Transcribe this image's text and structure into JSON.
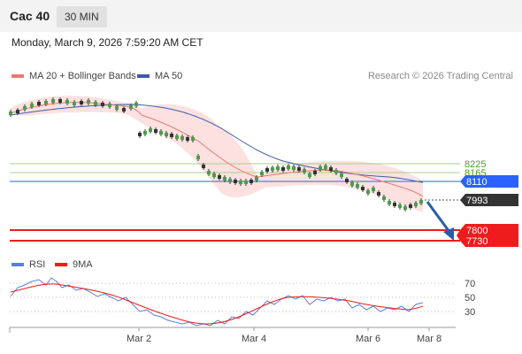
{
  "header": {
    "title": "Cac 40",
    "timeframe": "30 MIN"
  },
  "datetime": "Monday, March 9, 2026 7:59:20 AM CET",
  "legend": {
    "ma20_bb": "MA 20 + Bollinger Bands",
    "ma50": "MA 50",
    "copyright": "Research © 2026 Trading Central"
  },
  "colors": {
    "ma20": "#e87a72",
    "ma50": "#3a5ba8",
    "bands": "#fbdcda",
    "resistance": "#a8d08d",
    "resistance_text": "#4b9a2c",
    "pivot": "#2962ff",
    "support": "#ee1c1c",
    "last": "#333333",
    "arrow": "#2b5ca8",
    "rsi": "#5b80d8",
    "rsi_ma": "#ee1c1c"
  },
  "price_levels": {
    "resistance_1": "8225",
    "resistance_2": "8165",
    "pivot": "8110",
    "last": "7993",
    "support_1": "7800",
    "support_2": "7730"
  },
  "rsi_legend": {
    "rsi": "RSI",
    "ma": "9MA"
  },
  "rsi_levels": [
    "70",
    "50",
    "30"
  ],
  "x_axis": [
    "Mar 2",
    "Mar 4",
    "Mar 6",
    "Mar 8"
  ],
  "chart_data": [
    {
      "type": "line",
      "series": [
        {
          "name": "MA 20 + Bollinger Bands",
          "values": [
            8460,
            8480,
            8470,
            8440,
            8400,
            8330,
            8250,
            8200,
            8170,
            8180,
            8190,
            8150,
            8110,
            8050
          ]
        },
        {
          "name": "MA 50",
          "values": [
            8450,
            8470,
            8470,
            8460,
            8420,
            8360,
            8300,
            8250,
            8205,
            8175,
            8160,
            8140,
            8120,
            8100
          ]
        }
      ],
      "x": [
        "",
        "Mar 2",
        "",
        "",
        "",
        "Mar 4",
        "",
        "",
        "",
        "",
        "Mar 6",
        "",
        "",
        "Mar 8"
      ],
      "horizontal_levels": [
        8225,
        8165,
        8110,
        7993,
        7800,
        7730
      ]
    },
    {
      "type": "line",
      "series": [
        {
          "name": "RSI",
          "values": [
            60,
            75,
            55,
            40,
            22,
            25,
            45,
            52,
            48,
            42,
            38,
            35,
            40
          ]
        },
        {
          "name": "9MA",
          "values": [
            58,
            70,
            58,
            42,
            28,
            27,
            40,
            50,
            50,
            45,
            41,
            37,
            38
          ]
        }
      ],
      "levels": [
        70,
        50,
        30
      ]
    }
  ]
}
